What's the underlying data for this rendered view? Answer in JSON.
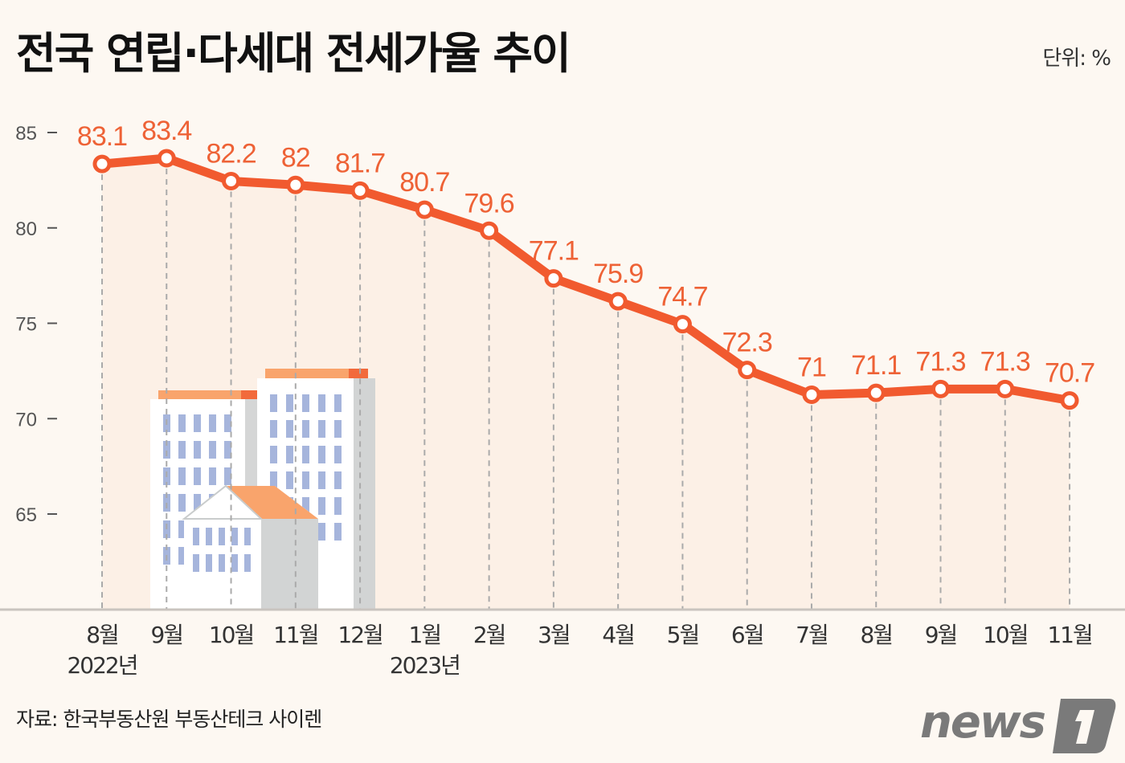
{
  "title": "전국 연립·다세대 전세가율 추이",
  "unit": "단위: %",
  "source": "자료: 한국부동산원 부동산테크 사이렌",
  "logo": "news1",
  "colors": {
    "line": "#f15a2f",
    "label": "#ee6236",
    "background": "#fdf8f2",
    "fill": "#fcebdd"
  },
  "chart_data": {
    "type": "line",
    "title": "전국 연립·다세대 전세가율 추이",
    "ylabel": "단위: %",
    "ylim": [
      60.5,
      85
    ],
    "yticks": [
      85,
      80,
      75,
      70,
      65
    ],
    "categories": [
      "8월",
      "9월",
      "10월",
      "11월",
      "12월",
      "1월",
      "2월",
      "3월",
      "4월",
      "5월",
      "6월",
      "7월",
      "8월",
      "9월",
      "10월",
      "11월"
    ],
    "year_labels": [
      {
        "index": 0,
        "label": "2022년"
      },
      {
        "index": 5,
        "label": "2023년"
      }
    ],
    "values": [
      83.1,
      83.4,
      82.2,
      82,
      81.7,
      80.7,
      79.6,
      77.1,
      75.9,
      74.7,
      72.3,
      71,
      71.1,
      71.3,
      71.3,
      70.7
    ],
    "value_labels": [
      "83.1",
      "83.4",
      "82.2",
      "82",
      "81.7",
      "80.7",
      "79.6",
      "77.1",
      "75.9",
      "74.7",
      "72.3",
      "71",
      "71.1",
      "71.3",
      "71.3",
      "70.7"
    ],
    "grid": false,
    "markers": "hollow-circle",
    "area_fill": true
  }
}
